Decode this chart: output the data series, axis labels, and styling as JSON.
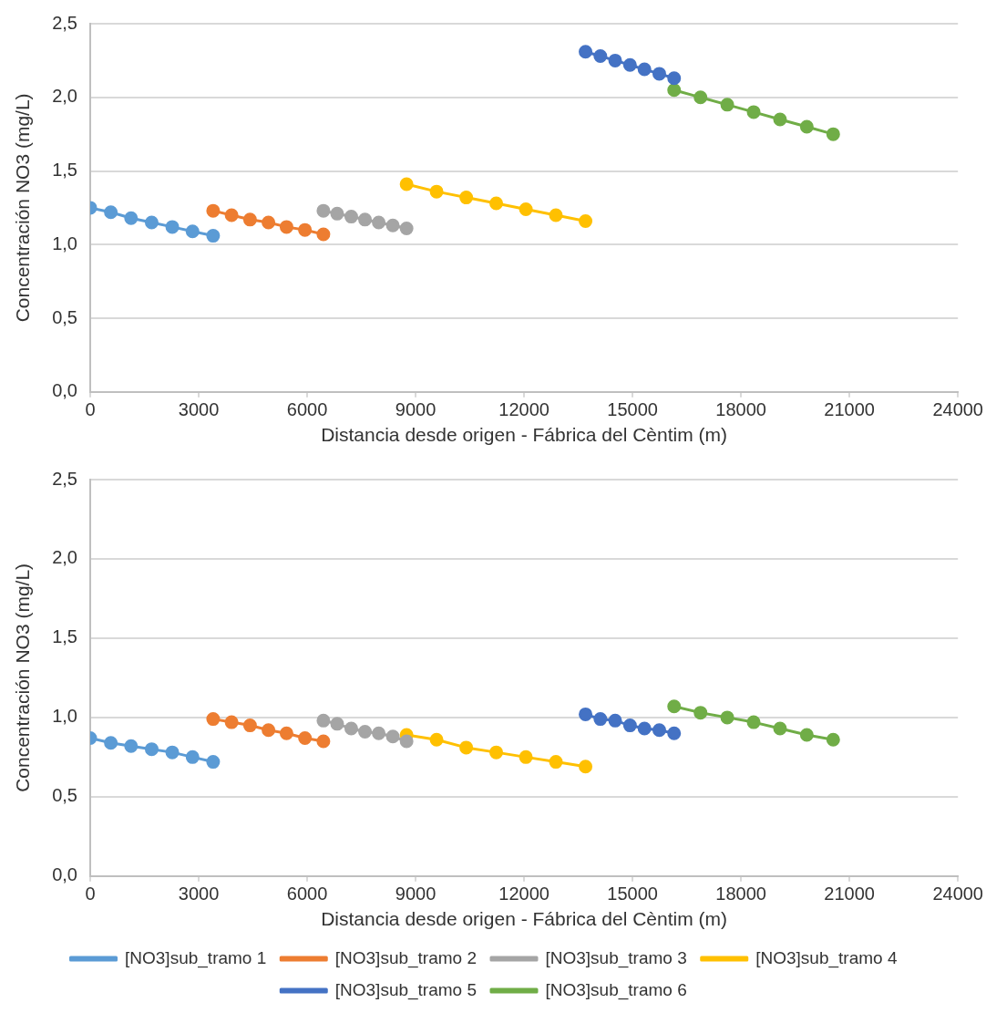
{
  "chart_data": [
    {
      "type": "line",
      "xlabel": "Distancia desde origen - Fábrica del Cèntim (m)",
      "ylabel": "Concentración NO3 (mg/L)",
      "xlim": [
        0,
        24000
      ],
      "xticks": [
        0,
        3000,
        6000,
        9000,
        12000,
        15000,
        18000,
        21000,
        24000
      ],
      "ylim": [
        0,
        2.5
      ],
      "yticks": [
        {
          "value": 0,
          "label": "0,0"
        },
        {
          "value": 0.5,
          "label": "0,5"
        },
        {
          "value": 1,
          "label": "1,0"
        },
        {
          "value": 1.5,
          "label": "1,5"
        },
        {
          "value": 2,
          "label": "2,0"
        },
        {
          "value": 2.5,
          "label": "2,5"
        }
      ],
      "grid": "y",
      "legend": false,
      "marker": "circle",
      "line_style": "solid",
      "series": [
        {
          "color": "#5b9bd5",
          "x": [
            0,
            570,
            1130,
            1700,
            2270,
            2830,
            3400
          ],
          "values": [
            1.25,
            1.22,
            1.18,
            1.15,
            1.12,
            1.09,
            1.06
          ]
        },
        {
          "color": "#ed7d31",
          "x": [
            3400,
            3910,
            4420,
            4930,
            5430,
            5940,
            6450
          ],
          "values": [
            1.23,
            1.2,
            1.17,
            1.15,
            1.12,
            1.1,
            1.07
          ]
        },
        {
          "color": "#a5a5a5",
          "x": [
            6450,
            6830,
            7220,
            7600,
            7980,
            8370,
            8750
          ],
          "values": [
            1.23,
            1.21,
            1.19,
            1.17,
            1.15,
            1.13,
            1.11
          ]
        },
        {
          "color": "#ffc000",
          "x": [
            8750,
            9580,
            10400,
            11230,
            12050,
            12880,
            13700
          ],
          "values": [
            1.41,
            1.36,
            1.32,
            1.28,
            1.24,
            1.2,
            1.16
          ]
        },
        {
          "color": "#4472c4",
          "x": [
            13700,
            14110,
            14520,
            14930,
            15330,
            15740,
            16150
          ],
          "values": [
            2.31,
            2.28,
            2.25,
            2.22,
            2.19,
            2.16,
            2.13
          ]
        },
        {
          "color": "#70ad47",
          "x": [
            16150,
            16880,
            17620,
            18350,
            19080,
            19820,
            20550
          ],
          "values": [
            2.05,
            2.0,
            1.95,
            1.9,
            1.85,
            1.8,
            1.75
          ]
        }
      ]
    },
    {
      "type": "line",
      "xlabel": "Distancia desde origen - Fábrica del Cèntim (m)",
      "ylabel": "Concentración NO3 (mg/L)",
      "xlim": [
        0,
        24000
      ],
      "xticks": [
        0,
        3000,
        6000,
        9000,
        12000,
        15000,
        18000,
        21000,
        24000
      ],
      "ylim": [
        0,
        2.5
      ],
      "yticks": [
        {
          "value": 0,
          "label": "0,0"
        },
        {
          "value": 0.5,
          "label": "0,5"
        },
        {
          "value": 1,
          "label": "1,0"
        },
        {
          "value": 1.5,
          "label": "1,5"
        },
        {
          "value": 2,
          "label": "2,0"
        },
        {
          "value": 2.5,
          "label": "2,5"
        }
      ],
      "grid": "y",
      "legend": "bottom",
      "marker": "circle",
      "line_style": "solid",
      "series": [
        {
          "name": "[NO3]sub_tramo 1",
          "color": "#5b9bd5",
          "x": [
            0,
            570,
            1130,
            1700,
            2270,
            2830,
            3400
          ],
          "values": [
            0.87,
            0.84,
            0.82,
            0.8,
            0.78,
            0.75,
            0.72
          ]
        },
        {
          "name": "[NO3]sub_tramo 2",
          "color": "#ed7d31",
          "x": [
            3400,
            3910,
            4420,
            4930,
            5430,
            5940,
            6450
          ],
          "values": [
            0.99,
            0.97,
            0.95,
            0.92,
            0.9,
            0.87,
            0.85
          ]
        },
        {
          "name": "[NO3]sub_tramo 3",
          "color": "#a5a5a5",
          "x": [
            6450,
            6830,
            7220,
            7600,
            7980,
            8370,
            8750
          ],
          "values": [
            0.98,
            0.96,
            0.93,
            0.91,
            0.9,
            0.88,
            0.85
          ]
        },
        {
          "name": "[NO3]sub_tramo 4",
          "color": "#ffc000",
          "x": [
            8750,
            9580,
            10400,
            11230,
            12050,
            12880,
            13700
          ],
          "values": [
            0.89,
            0.86,
            0.81,
            0.78,
            0.75,
            0.72,
            0.69
          ]
        },
        {
          "name": "[NO3]sub_tramo 5",
          "color": "#4472c4",
          "x": [
            13700,
            14110,
            14520,
            14930,
            15330,
            15740,
            16150
          ],
          "values": [
            1.02,
            0.99,
            0.98,
            0.95,
            0.93,
            0.92,
            0.9
          ]
        },
        {
          "name": "[NO3]sub_tramo 6",
          "color": "#70ad47",
          "x": [
            16150,
            16880,
            17620,
            18350,
            19080,
            19820,
            20550
          ],
          "values": [
            1.07,
            1.03,
            1.0,
            0.97,
            0.93,
            0.89,
            0.86
          ]
        }
      ]
    }
  ]
}
